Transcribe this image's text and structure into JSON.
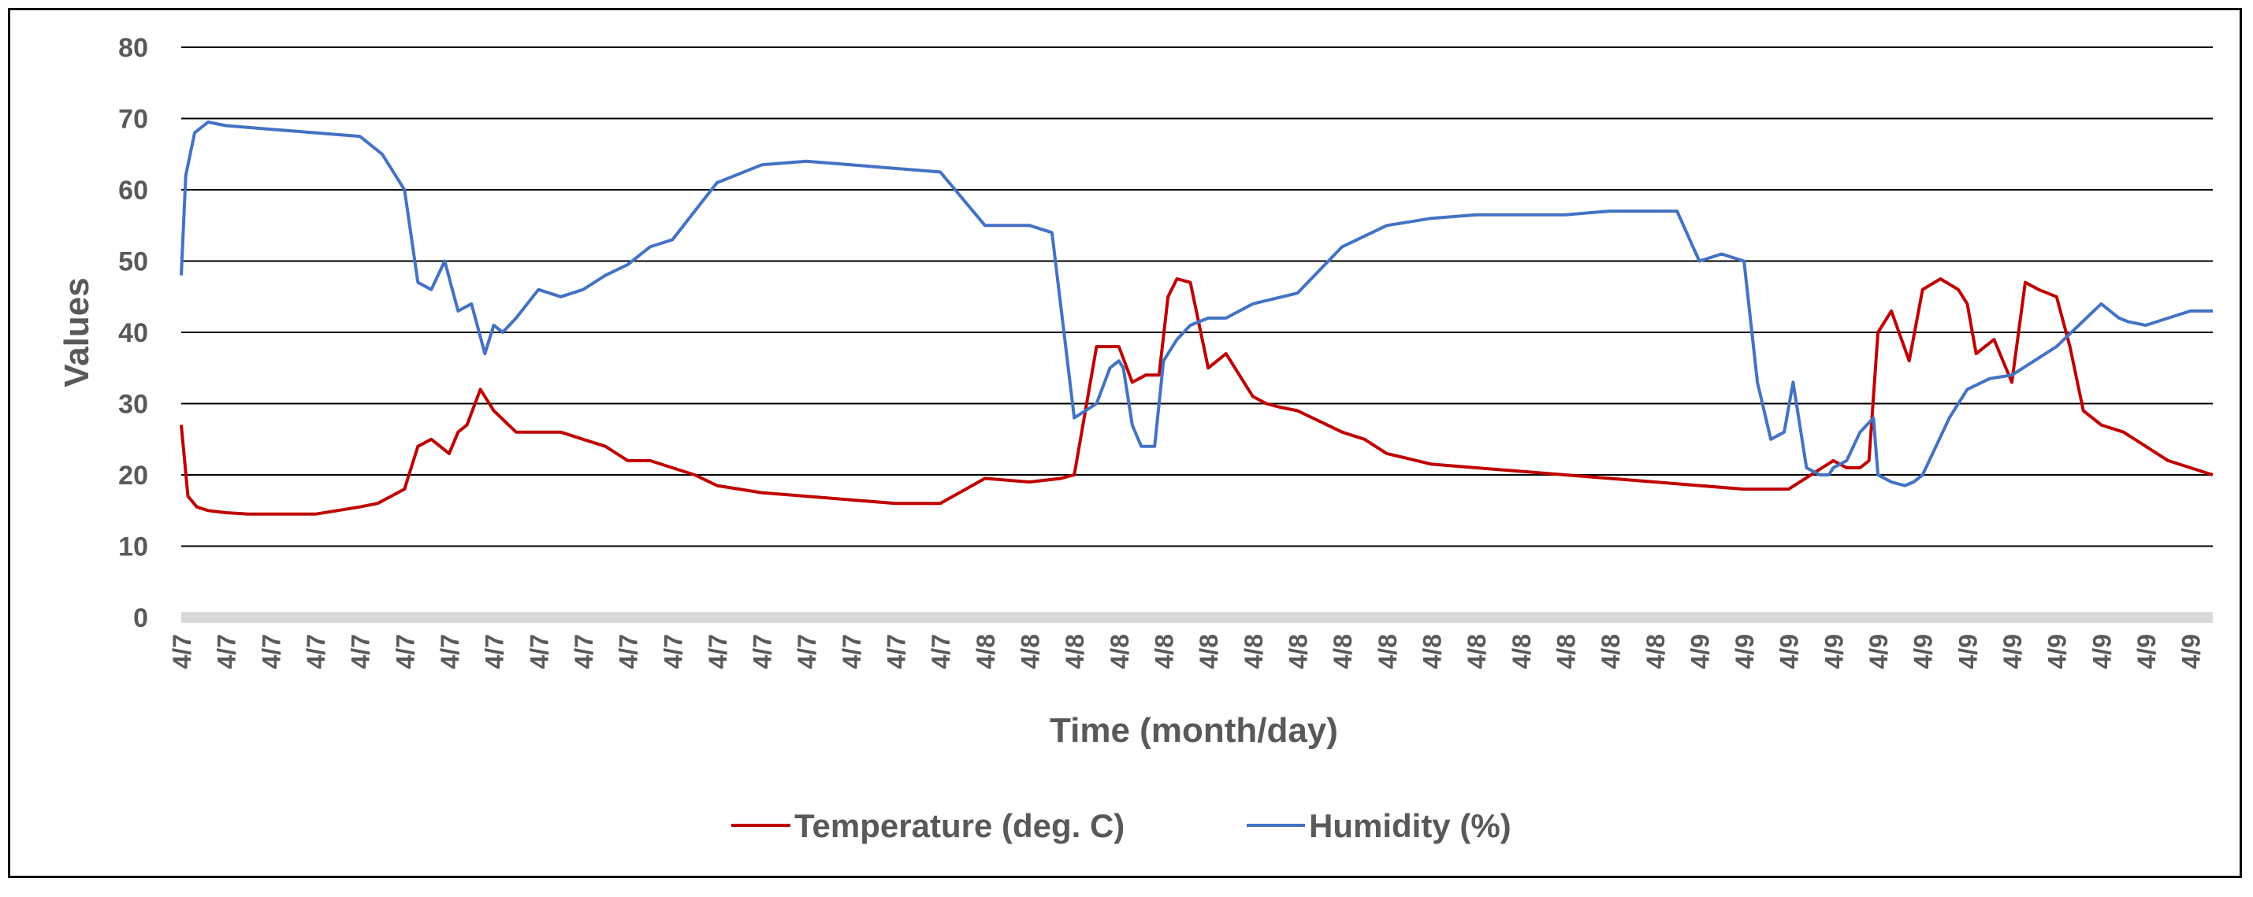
{
  "chart_data": {
    "type": "line",
    "title": "",
    "xlabel": "Time (month/day)",
    "ylabel": "Values",
    "ylim": [
      0,
      80
    ],
    "yticks": [
      0,
      10,
      20,
      30,
      40,
      50,
      60,
      70,
      80
    ],
    "grid": true,
    "legend_position": "bottom-center",
    "categories": [
      "4/7",
      "4/7",
      "4/7",
      "4/7",
      "4/7",
      "4/7",
      "4/7",
      "4/7",
      "4/7",
      "4/7",
      "4/7",
      "4/7",
      "4/7",
      "4/7",
      "4/7",
      "4/7",
      "4/7",
      "4/7",
      "4/8",
      "4/8",
      "4/8",
      "4/8",
      "4/8",
      "4/8",
      "4/8",
      "4/8",
      "4/8",
      "4/8",
      "4/8",
      "4/8",
      "4/8",
      "4/8",
      "4/8",
      "4/8",
      "4/9",
      "4/9",
      "4/9",
      "4/9",
      "4/9",
      "4/9",
      "4/9",
      "4/9",
      "4/9",
      "4/9",
      "4/9",
      "4/9"
    ],
    "series": [
      {
        "name": "Temperature (deg. C)",
        "color": "#c00000",
        "x": [
          0,
          0.15,
          0.35,
          0.6,
          1,
          1.5,
          2,
          2.5,
          3,
          3.5,
          4,
          4.4,
          4.7,
          5,
          5.3,
          5.6,
          5.8,
          6,
          6.2,
          6.4,
          6.7,
          7,
          7.5,
          8,
          8.5,
          9,
          9.5,
          10,
          10.5,
          11,
          11.5,
          12,
          13,
          14,
          15,
          16,
          17,
          18,
          19,
          19.7,
          20,
          20.5,
          21,
          21.3,
          21.6,
          21.9,
          22.1,
          22.3,
          22.6,
          23,
          23.4,
          23.8,
          24,
          24.3,
          24.6,
          25,
          25.5,
          26,
          26.5,
          27,
          28,
          29,
          30,
          31,
          32,
          33,
          34,
          35,
          36,
          36.5,
          37,
          37.3,
          37.6,
          37.8,
          38,
          38.3,
          38.7,
          39,
          39.4,
          39.8,
          40,
          40.2,
          40.6,
          41,
          41.3,
          41.6,
          42,
          42.3,
          42.6,
          43,
          43.5,
          44,
          44.5,
          45,
          45.5
        ],
        "values": [
          27,
          17,
          15.5,
          15,
          14.7,
          14.5,
          14.5,
          14.5,
          14.5,
          15,
          15.5,
          16,
          17,
          18,
          24,
          25,
          24,
          23,
          26,
          27,
          32,
          29,
          26,
          26,
          26,
          25,
          24,
          22,
          22,
          21,
          20,
          18.5,
          17.5,
          17,
          16.5,
          16,
          16,
          19.5,
          19,
          19.5,
          20,
          38,
          38,
          33,
          34,
          34,
          45,
          47.5,
          47,
          35,
          37,
          33,
          31,
          30,
          29.5,
          29,
          27.5,
          26,
          25,
          23,
          21.5,
          21,
          20.5,
          20,
          19.5,
          19,
          18.5,
          18,
          18,
          20,
          22,
          21,
          21,
          22,
          40,
          43,
          36,
          46,
          47.5,
          46,
          44,
          37,
          39,
          33,
          47,
          46,
          45,
          38,
          29,
          27,
          26,
          24,
          22,
          21,
          20
        ]
      },
      {
        "name": "Humidity (%)",
        "color": "#4472c4",
        "x": [
          0,
          0.1,
          0.3,
          0.6,
          1,
          2,
          3,
          4,
          4.5,
          5,
          5.3,
          5.6,
          5.9,
          6.2,
          6.5,
          6.8,
          7,
          7.2,
          7.5,
          8,
          8.5,
          9,
          9.5,
          10,
          10.5,
          11,
          11.5,
          12,
          13,
          14,
          15,
          16,
          17,
          18,
          19,
          19.5,
          20,
          20.5,
          20.8,
          21,
          21.1,
          21.3,
          21.5,
          21.8,
          22,
          22.3,
          22.6,
          23,
          23.4,
          24,
          25,
          26,
          27,
          28,
          29,
          30,
          31,
          32,
          33,
          33.5,
          34,
          34.5,
          35,
          35.3,
          35.6,
          35.9,
          36.1,
          36.4,
          36.7,
          36.9,
          37,
          37.3,
          37.6,
          37.9,
          38,
          38.3,
          38.6,
          38.8,
          39,
          39.3,
          39.6,
          40,
          40.5,
          41,
          41.5,
          42,
          43,
          43.4,
          43.6,
          44,
          44.5,
          45,
          45.5
        ],
        "values": [
          48,
          62,
          68,
          69.5,
          69,
          68.5,
          68,
          67.5,
          65,
          60,
          47,
          46,
          50,
          43,
          44,
          37,
          41,
          40,
          42,
          46,
          45,
          46,
          48,
          49.5,
          52,
          53,
          57,
          61,
          63.5,
          64,
          63.5,
          63,
          62.5,
          55,
          55,
          54,
          28,
          30,
          35,
          36,
          35,
          27,
          24,
          24,
          36,
          39,
          41,
          42,
          42,
          44,
          45.5,
          52,
          55,
          56,
          56.5,
          56.5,
          56.5,
          57,
          57,
          57,
          50,
          51,
          50,
          33,
          25,
          26,
          33,
          21,
          20,
          20,
          21,
          22,
          26,
          28,
          20,
          19,
          18.5,
          19,
          20,
          24,
          28,
          32,
          33.5,
          34,
          36,
          38,
          44,
          42,
          41.5,
          41,
          42,
          43,
          43
        ]
      }
    ]
  },
  "legend": {
    "temperature_label": "Temperature (deg. C)",
    "humidity_label": "Humidity (%)"
  }
}
